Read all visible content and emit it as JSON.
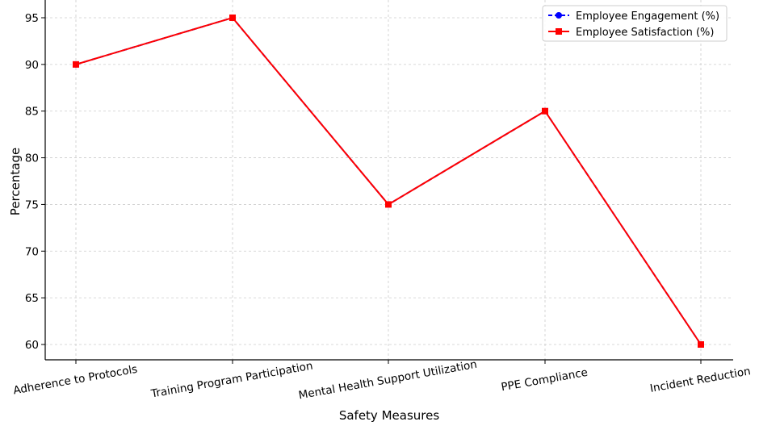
{
  "chart_data": {
    "type": "line",
    "title": "",
    "xlabel": "Safety Measures",
    "ylabel": "Percentage",
    "categories": [
      "Adherence to Protocols",
      "Training Program Participation",
      "Mental Health Support Utilization",
      "PPE Compliance",
      "Incident Reduction"
    ],
    "yticks": [
      60,
      65,
      70,
      75,
      80,
      85,
      90,
      95
    ],
    "ylim": [
      59,
      96
    ],
    "grid": true,
    "legend_position": "top-right",
    "series": [
      {
        "name": "Employee Engagement (%)",
        "values": [
          90,
          95,
          75,
          85,
          60
        ],
        "color": "#0000ff",
        "marker": "circle",
        "linestyle": "dashed"
      },
      {
        "name": "Employee Satisfaction (%)",
        "values": [
          90,
          95,
          75,
          85,
          60
        ],
        "color": "#ff0000",
        "marker": "square",
        "linestyle": "solid"
      }
    ]
  }
}
